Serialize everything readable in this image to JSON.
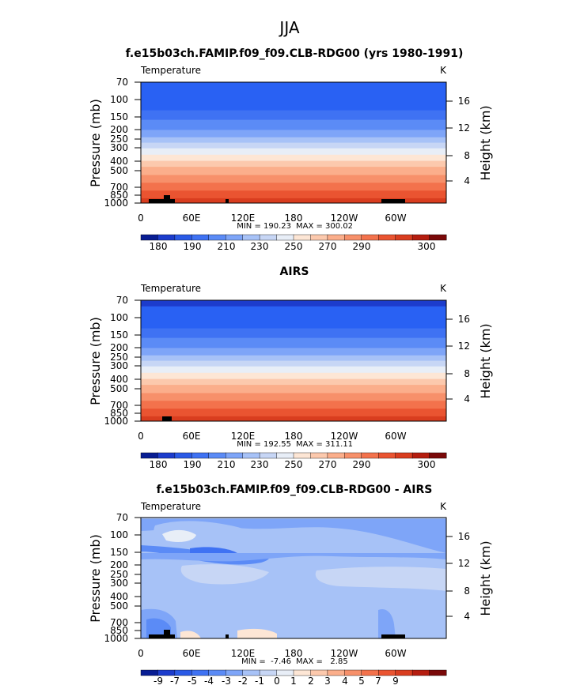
{
  "figure": {
    "season": "JJA"
  },
  "chart_data": [
    {
      "type": "heatmap",
      "title": "f.e15b03ch.FAMIP.f09_f09.CLB-RDG00 (yrs 1980-1991)",
      "variable": "Temperature",
      "units": "K",
      "xlabel": "",
      "ylabel": "Pressure (mb)",
      "ylabel_right": "Height (km)",
      "x_ticks": [
        "0",
        "60E",
        "120E",
        "180",
        "120W",
        "60W"
      ],
      "y_ticks": [
        "70",
        "100",
        "150",
        "200",
        "250",
        "300",
        "400",
        "500",
        "700",
        "850",
        "1000"
      ],
      "y_ticks_right": [
        "16",
        "12",
        "8",
        "4"
      ],
      "y_scale": "log",
      "stats": {
        "min": "MIN = 190.23",
        "max": "MAX = 300.02"
      },
      "bands_top_to_bottom": [
        {
          "p": [
            70,
            130
          ],
          "color": "#2961f3"
        },
        {
          "p": [
            130,
            160
          ],
          "color": "#3f72f3"
        },
        {
          "p": [
            160,
            200
          ],
          "color": "#5b8bf6"
        },
        {
          "p": [
            200,
            235
          ],
          "color": "#7ea5f8"
        },
        {
          "p": [
            235,
            265
          ],
          "color": "#a7c2f7"
        },
        {
          "p": [
            265,
            300
          ],
          "color": "#c7d6f5"
        },
        {
          "p": [
            300,
            345
          ],
          "color": "#e8eef7"
        },
        {
          "p": [
            345,
            395
          ],
          "color": "#fde6d5"
        },
        {
          "p": [
            395,
            450
          ],
          "color": "#fcc9ad"
        },
        {
          "p": [
            450,
            540
          ],
          "color": "#fbae8b"
        },
        {
          "p": [
            540,
            640
          ],
          "color": "#f7906a"
        },
        {
          "p": [
            640,
            760
          ],
          "color": "#f3724c"
        },
        {
          "p": [
            760,
            900
          ],
          "color": "#ea5431"
        },
        {
          "p": [
            900,
            1000
          ],
          "color": "#d93d1f"
        }
      ],
      "colorbar": {
        "colors": [
          "#081d93",
          "#1c3ccc",
          "#2a5ae6",
          "#3f72f3",
          "#5b8bf6",
          "#7ea5f8",
          "#a7c2f7",
          "#c7d6f5",
          "#e8eef7",
          "#fde6d5",
          "#fcc9ad",
          "#fbae8b",
          "#f7906a",
          "#f3724c",
          "#ea5431",
          "#d93d1f",
          "#b51d0f",
          "#7a0909"
        ],
        "labels": [
          "180",
          "190",
          "210",
          "230",
          "250",
          "270",
          "290",
          "300"
        ]
      }
    },
    {
      "type": "heatmap",
      "title": "AIRS",
      "variable": "Temperature",
      "units": "K",
      "xlabel": "",
      "ylabel": "Pressure (mb)",
      "ylabel_right": "Height (km)",
      "x_ticks": [
        "0",
        "60E",
        "120E",
        "180",
        "120W",
        "60W"
      ],
      "y_ticks": [
        "70",
        "100",
        "150",
        "200",
        "250",
        "300",
        "400",
        "500",
        "700",
        "850",
        "1000"
      ],
      "y_ticks_right": [
        "16",
        "12",
        "8",
        "4"
      ],
      "y_scale": "log",
      "stats": {
        "min": "MIN = 192.55",
        "max": "MAX = 311.11"
      },
      "bands_top_to_bottom": [
        {
          "p": [
            70,
            80
          ],
          "color": "#1c3ccc"
        },
        {
          "p": [
            80,
            130
          ],
          "color": "#2961f3"
        },
        {
          "p": [
            130,
            160
          ],
          "color": "#3f72f3"
        },
        {
          "p": [
            160,
            200
          ],
          "color": "#5b8bf6"
        },
        {
          "p": [
            200,
            235
          ],
          "color": "#7ea5f8"
        },
        {
          "p": [
            235,
            265
          ],
          "color": "#a7c2f7"
        },
        {
          "p": [
            265,
            300
          ],
          "color": "#c7d6f5"
        },
        {
          "p": [
            300,
            345
          ],
          "color": "#e8eef7"
        },
        {
          "p": [
            345,
            395
          ],
          "color": "#fde6d5"
        },
        {
          "p": [
            395,
            450
          ],
          "color": "#fcc9ad"
        },
        {
          "p": [
            450,
            540
          ],
          "color": "#fbae8b"
        },
        {
          "p": [
            540,
            640
          ],
          "color": "#f7906a"
        },
        {
          "p": [
            640,
            760
          ],
          "color": "#f3724c"
        },
        {
          "p": [
            760,
            900
          ],
          "color": "#ea5431"
        },
        {
          "p": [
            900,
            1000
          ],
          "color": "#d93d1f"
        }
      ],
      "colorbar": {
        "colors": [
          "#081d93",
          "#1c3ccc",
          "#2a5ae6",
          "#3f72f3",
          "#5b8bf6",
          "#7ea5f8",
          "#a7c2f7",
          "#c7d6f5",
          "#e8eef7",
          "#fde6d5",
          "#fcc9ad",
          "#fbae8b",
          "#f7906a",
          "#f3724c",
          "#ea5431",
          "#d93d1f",
          "#b51d0f",
          "#7a0909"
        ],
        "labels": [
          "180",
          "190",
          "210",
          "230",
          "250",
          "270",
          "290",
          "300"
        ]
      }
    },
    {
      "type": "heatmap",
      "title": "f.e15b03ch.FAMIP.f09_f09.CLB-RDG00 - AIRS",
      "variable": "Temperature",
      "units": "K",
      "xlabel": "",
      "ylabel": "Pressure (mb)",
      "ylabel_right": "Height (km)",
      "x_ticks": [
        "0",
        "60E",
        "120E",
        "180",
        "120W",
        "60W"
      ],
      "y_ticks": [
        "70",
        "100",
        "150",
        "200",
        "250",
        "300",
        "400",
        "500",
        "700",
        "850",
        "1000"
      ],
      "y_ticks_right": [
        "16",
        "12",
        "8",
        "4"
      ],
      "y_scale": "log",
      "stats": {
        "min": "MIN =  -7.46",
        "max": "MAX =   2.85"
      },
      "bands_top_to_bottom": [
        {
          "p": [
            70,
            1000
          ],
          "color": "#a7c2f7"
        }
      ],
      "colorbar": {
        "colors": [
          "#081d93",
          "#1c3ccc",
          "#2a5ae6",
          "#3f72f3",
          "#5b8bf6",
          "#7ea5f8",
          "#a7c2f7",
          "#c7d6f5",
          "#e8eef7",
          "#fde6d5",
          "#fcc9ad",
          "#fbae8b",
          "#f7906a",
          "#f3724c",
          "#ea5431",
          "#d93d1f",
          "#b51d0f",
          "#7a0909"
        ],
        "labels": [
          "-9",
          "-7",
          "-5",
          "-4",
          "-3",
          "-2",
          "-1",
          "0",
          "1",
          "2",
          "3",
          "4",
          "5",
          "7",
          "9"
        ]
      }
    }
  ]
}
